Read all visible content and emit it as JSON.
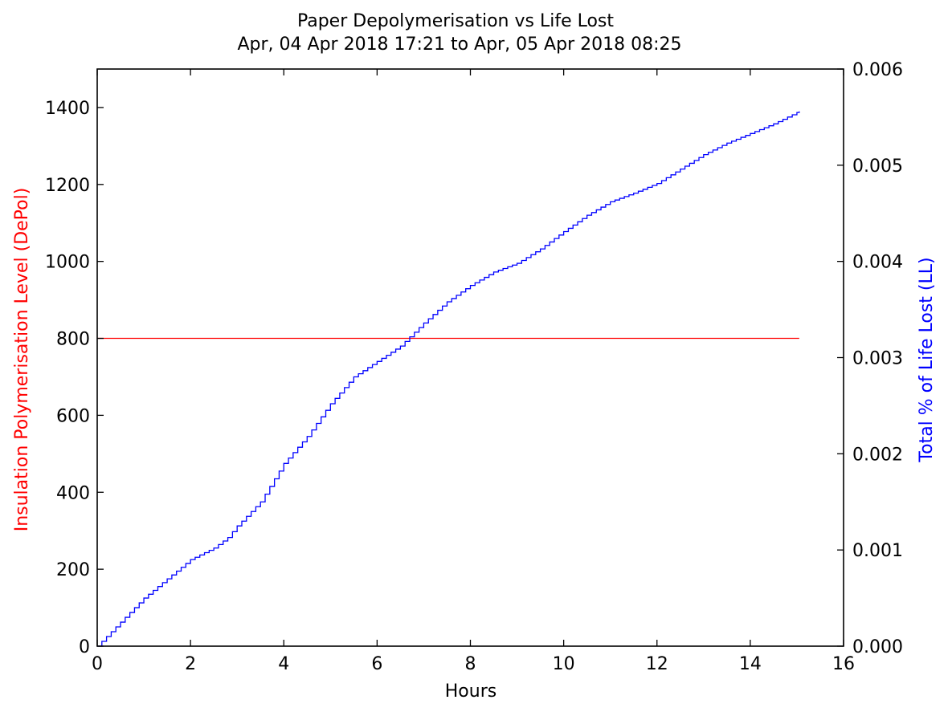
{
  "chart_data": {
    "type": "line",
    "title": "Paper Depolymerisation vs Life Lost",
    "subtitle": "Apr, 04 Apr 2018 17:21 to Apr, 05 Apr 2018 08:25",
    "xlabel": "Hours",
    "ylabel_left": "Insulation Polymerisation Level (DePol)",
    "ylabel_right": "Total % of Life Lost (LL)",
    "xlim": [
      0,
      16
    ],
    "ylim_left": [
      0,
      1500
    ],
    "ylim_right": [
      0,
      0.006
    ],
    "x_ticks": [
      "0",
      "2",
      "4",
      "6",
      "8",
      "10",
      "12",
      "14",
      "16"
    ],
    "y_left_ticks": [
      "0",
      "200",
      "400",
      "600",
      "800",
      "1000",
      "1200",
      "1400"
    ],
    "y_right_ticks": [
      "0.000",
      "0.001",
      "0.002",
      "0.003",
      "0.004",
      "0.005",
      "0.006"
    ],
    "grid": false,
    "series": [
      {
        "axis": "left",
        "color": "#ff0000",
        "x": [
          0,
          15.05
        ],
        "y": [
          800,
          800
        ]
      },
      {
        "axis": "right",
        "color": "#0000ff",
        "x": [
          0,
          0.5,
          1.0,
          1.5,
          2.0,
          2.5,
          2.8,
          3.0,
          3.5,
          4.0,
          4.5,
          5.0,
          5.5,
          6.0,
          6.5,
          7.0,
          7.5,
          8.0,
          8.5,
          9.0,
          9.5,
          10.0,
          10.5,
          11.0,
          11.5,
          12.0,
          12.5,
          13.0,
          13.5,
          14.0,
          14.5,
          15.05
        ],
        "y": [
          0.0,
          0.00025,
          0.0005,
          0.0007,
          0.0009,
          0.00102,
          0.00113,
          0.00125,
          0.0015,
          0.0019,
          0.00218,
          0.00252,
          0.0028,
          0.00296,
          0.00312,
          0.00336,
          0.00358,
          0.00375,
          0.00389,
          0.00398,
          0.00413,
          0.00431,
          0.00448,
          0.00462,
          0.00471,
          0.00481,
          0.00496,
          0.00511,
          0.00523,
          0.00533,
          0.00543,
          0.00556
        ]
      }
    ]
  }
}
